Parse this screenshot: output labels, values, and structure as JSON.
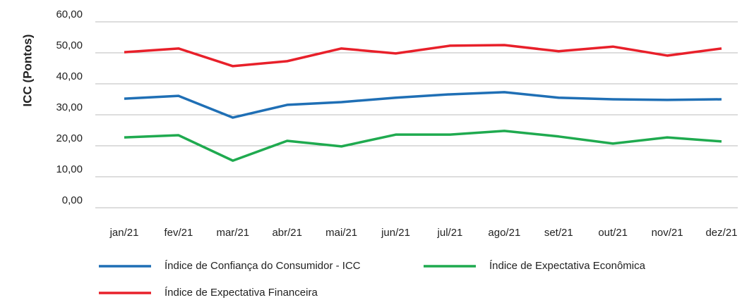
{
  "chart_data": {
    "type": "line",
    "ylabel": "ICC (Pontos)",
    "categories": [
      "jan/21",
      "fev/21",
      "mar/21",
      "abr/21",
      "mai/21",
      "jun/21",
      "jul/21",
      "ago/21",
      "set/21",
      "out/21",
      "nov/21",
      "dez/21"
    ],
    "series": [
      {
        "name": "Índice de Confiança do Consumidor - ICC",
        "color": "#1f6fb5",
        "values": [
          35.2,
          36.1,
          29.1,
          33.2,
          34.1,
          35.5,
          36.6,
          37.3,
          35.5,
          35.0,
          34.8,
          35.0
        ]
      },
      {
        "name": "Índice de Expectativa Econômica",
        "color": "#1faa4f",
        "values": [
          22.7,
          23.4,
          15.2,
          21.6,
          19.8,
          23.6,
          23.6,
          24.8,
          23.0,
          20.7,
          22.7,
          21.4
        ]
      },
      {
        "name": "Índice de Expectativa Financeira",
        "color": "#e8202a",
        "values": [
          50.2,
          51.4,
          45.7,
          47.3,
          51.4,
          49.8,
          52.3,
          52.5,
          50.5,
          52.0,
          49.1,
          51.4
        ]
      }
    ],
    "ylim": [
      0,
      60
    ],
    "yticks": [
      {
        "value": 0,
        "label": "0,00"
      },
      {
        "value": 10,
        "label": "10,00"
      },
      {
        "value": 20,
        "label": "20,00"
      },
      {
        "value": 30,
        "label": "30,00"
      },
      {
        "value": 40,
        "label": "40,00"
      },
      {
        "value": 50,
        "label": "50,00"
      },
      {
        "value": 60,
        "label": "60,00"
      }
    ],
    "grid": true,
    "legend": "bottom"
  }
}
